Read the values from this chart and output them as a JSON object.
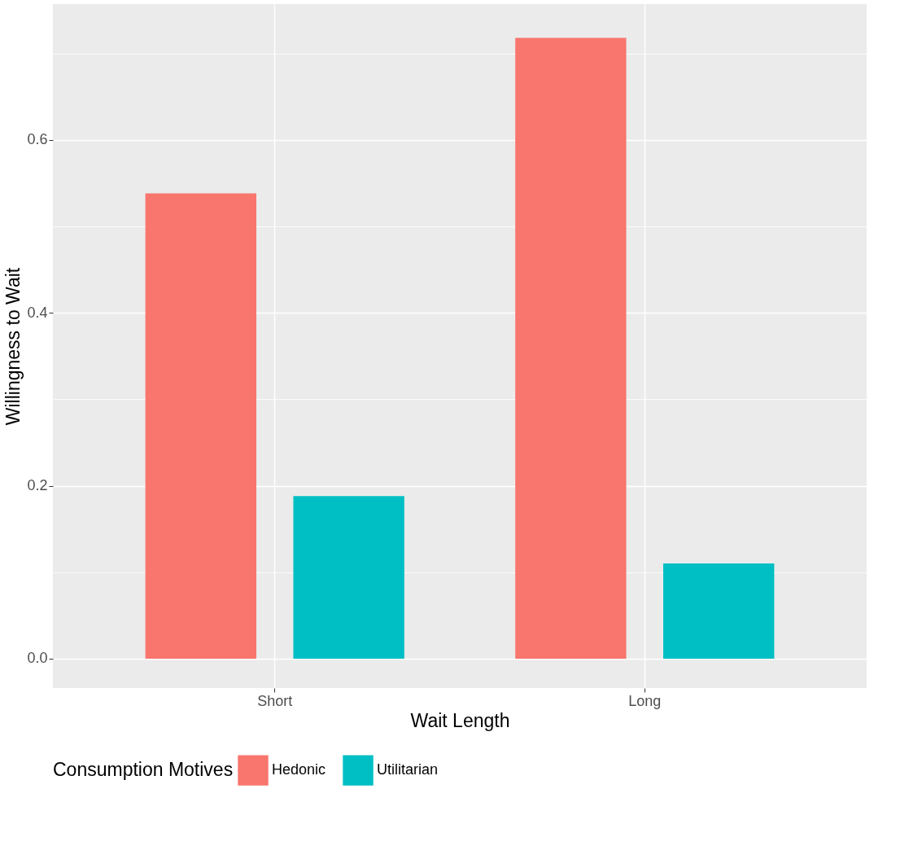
{
  "chart_data": {
    "type": "bar",
    "xlabel": "Wait Length",
    "ylabel": "Willingness to Wait",
    "legend_title": "Consumption Motives",
    "categories": [
      "Short",
      "Long"
    ],
    "series": [
      {
        "name": "Hedonic",
        "color": "#f8766d",
        "values": [
          0.538,
          0.718
        ]
      },
      {
        "name": "Utilitarian",
        "color": "#00bfc4",
        "values": [
          0.188,
          0.11
        ]
      }
    ],
    "ylim": [
      -0.034,
      0.757
    ],
    "yticks": [
      {
        "value": 0,
        "label": "0.0"
      },
      {
        "value": 0.1,
        "label": null
      },
      {
        "value": 0.2,
        "label": "0.2"
      },
      {
        "value": 0.3,
        "label": null
      },
      {
        "value": 0.4,
        "label": "0.4"
      },
      {
        "value": 0.5,
        "label": null
      },
      {
        "value": 0.6,
        "label": "0.6"
      },
      {
        "value": 0.7,
        "label": null
      }
    ],
    "grid": true,
    "legend": "bottom"
  }
}
